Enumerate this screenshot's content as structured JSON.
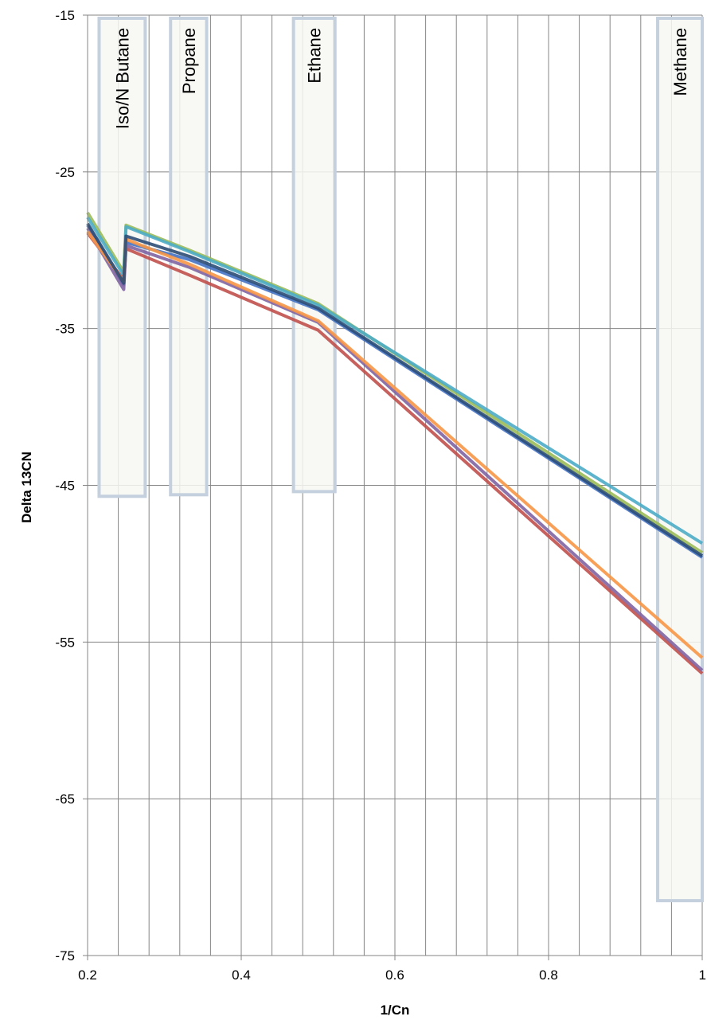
{
  "chart_data": {
    "type": "line",
    "xlabel": "1/Cn",
    "ylabel": "Delta 13CN",
    "xlim": [
      0.2,
      1
    ],
    "ylim": [
      -75,
      -15
    ],
    "x_ticks": [
      "0.2",
      "0.4",
      "0.6",
      "0.8",
      "1"
    ],
    "y_ticks": [
      "-15",
      "-25",
      "-35",
      "-45",
      "-55",
      "-65",
      "-75"
    ],
    "minor_x_gridlines": true,
    "major_y_gridlines": true,
    "bands": [
      {
        "label": "Iso/N Butane",
        "x_range": [
          0.215,
          0.275
        ],
        "y_range": [
          -45.7,
          -15.2
        ]
      },
      {
        "label": "Propane",
        "x_range": [
          0.308,
          0.355
        ],
        "y_range": [
          -45.6,
          -15.2
        ]
      },
      {
        "label": "Ethane",
        "x_range": [
          0.468,
          0.522
        ],
        "y_range": [
          -45.4,
          -15.2
        ]
      },
      {
        "label": "Methane",
        "x_range": [
          0.942,
          1.0
        ],
        "y_range": [
          -71.5,
          -15.2
        ]
      }
    ],
    "x": [
      0.2,
      0.247,
      0.25,
      0.333,
      0.5,
      1.0
    ],
    "series": [
      {
        "color": "#4472c4",
        "values": [
          -28.4,
          -32.2,
          -29.5,
          -30.6,
          -33.8,
          -49.6
        ]
      },
      {
        "color": "#c0504d",
        "values": [
          -28.9,
          -31.9,
          -29.9,
          -31.6,
          -35.1,
          -57.0
        ]
      },
      {
        "color": "#9bbb59",
        "values": [
          -27.6,
          -31.4,
          -28.4,
          -30.0,
          -33.4,
          -49.3
        ]
      },
      {
        "color": "#8064a2",
        "values": [
          -28.6,
          -32.5,
          -29.7,
          -31.1,
          -34.6,
          -56.8
        ]
      },
      {
        "color": "#4bacc6",
        "values": [
          -27.9,
          -31.6,
          -28.5,
          -30.1,
          -33.5,
          -48.7
        ]
      },
      {
        "color": "#f79646",
        "values": [
          -28.8,
          -32.0,
          -29.3,
          -30.9,
          -34.5,
          -56.0
        ]
      },
      {
        "color": "#2c4d75",
        "values": [
          -28.3,
          -32.1,
          -29.1,
          -30.4,
          -33.7,
          -49.5
        ]
      }
    ],
    "grid_color": "#868686",
    "band_fill": "#f7f7f2",
    "band_stroke": "#c4d0de"
  }
}
